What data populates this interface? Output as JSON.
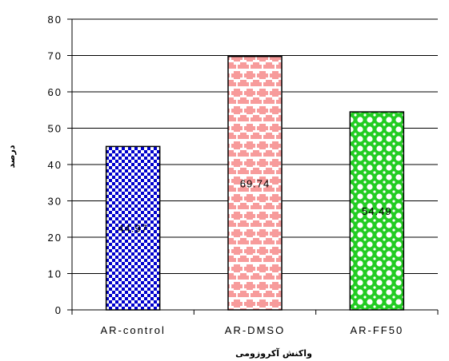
{
  "chart_data": {
    "type": "bar",
    "categories": [
      "AR-control",
      "AR-DMSO",
      "AR-FF50"
    ],
    "values": [
      44.97,
      69.74,
      54.49
    ],
    "data_labels": [
      "44.97",
      "69.74",
      "54.49"
    ],
    "title": "",
    "xlabel": "واکنش آکروزومی",
    "ylabel": "درصد",
    "ylim": [
      0,
      80
    ],
    "yticks": [
      "0",
      "10",
      "20",
      "30",
      "40",
      "50",
      "60",
      "70",
      "80"
    ],
    "grid": "horizontal",
    "legend": "none",
    "bar_fills": [
      {
        "pattern": "checkerboard",
        "colors": [
          "#0000cc",
          "#ffffff"
        ]
      },
      {
        "pattern": "plus-dots",
        "colors": [
          "#f79b9b",
          "#ffffff"
        ]
      },
      {
        "pattern": "circles",
        "colors": [
          "#22cc22",
          "#ffffff"
        ]
      }
    ]
  }
}
